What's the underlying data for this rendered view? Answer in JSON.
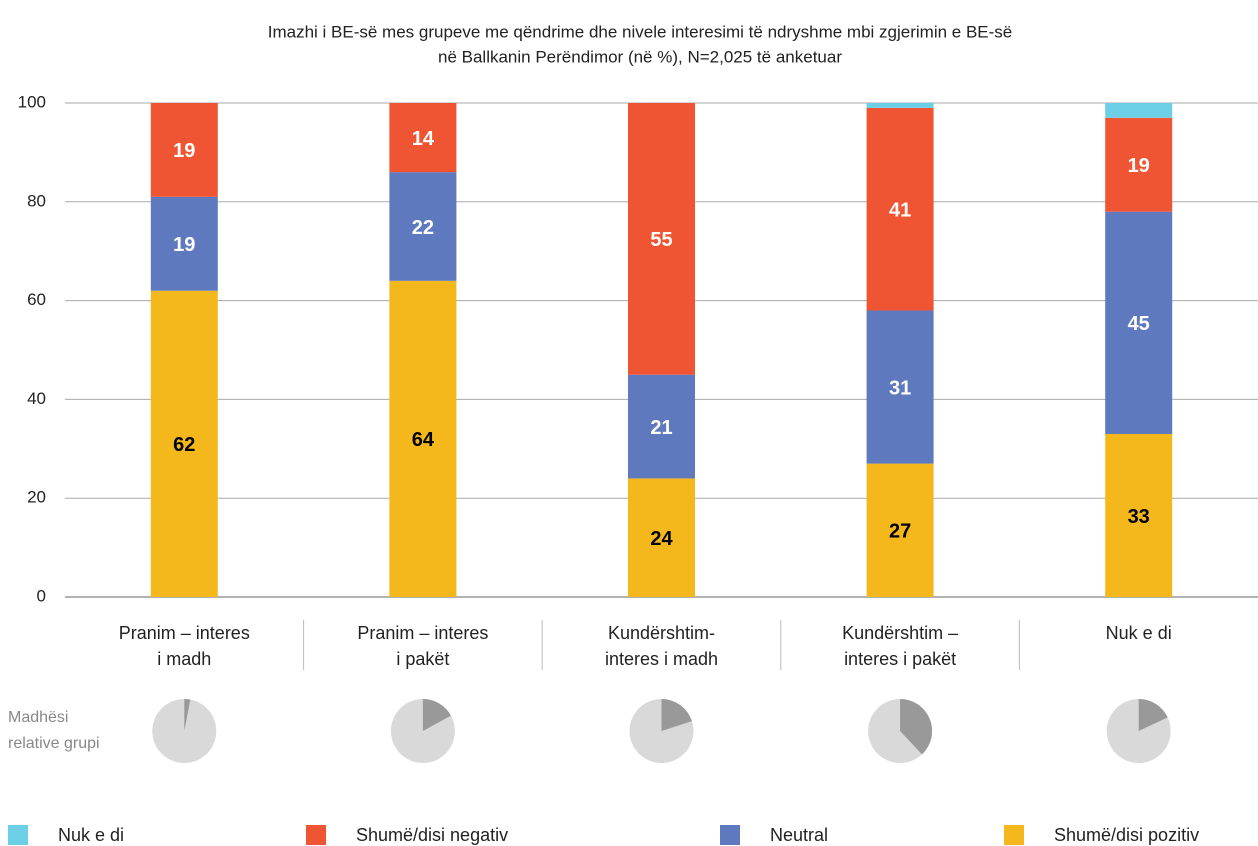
{
  "chart_data": {
    "type": "stacked_bar",
    "title": [
      "Imazhi i BE-së mes grupeve me qëndrime dhe nivele interesimi të ndryshme mbi zgjerimin e BE-së",
      "në Ballkanin Perëndimor (në %), N=2,025 të anketuar"
    ],
    "categories": [
      [
        "Pranim – interes",
        "i madh"
      ],
      [
        "Pranim – interes",
        "i pakët"
      ],
      [
        "Kundërshtim-",
        "interes i madh"
      ],
      [
        "Kundërshtim –",
        "interes i pakët"
      ],
      [
        "Nuk e di"
      ]
    ],
    "series": [
      {
        "name": "Nuk e di",
        "color": "#6dcfe6",
        "values": [
          0,
          0,
          0,
          1,
          3
        ],
        "show_labels": false
      },
      {
        "name": "Shumë/disi negativ",
        "color": "#ef5533",
        "values": [
          19,
          14,
          55,
          41,
          19
        ],
        "label_color": "#ffffff",
        "show_labels": true
      },
      {
        "name": "Neutral",
        "color": "#5f79bf",
        "values": [
          19,
          22,
          21,
          31,
          45
        ],
        "label_color": "#ffffff",
        "show_labels": true
      },
      {
        "name": "Shumë/disi pozitiv",
        "color": "#f5b81c",
        "values": [
          62,
          64,
          24,
          27,
          33
        ],
        "label_color": "#000000",
        "show_labels": true
      }
    ],
    "ylim": [
      0,
      100
    ],
    "yticks": [
      0,
      20,
      40,
      60,
      80,
      100
    ],
    "grid": true,
    "group_size": {
      "label": [
        "Madhësi",
        "relative grupi"
      ],
      "values": [
        3,
        17,
        20,
        38,
        18
      ],
      "color": "#999999",
      "rest_color": "#d9d9d9"
    }
  }
}
